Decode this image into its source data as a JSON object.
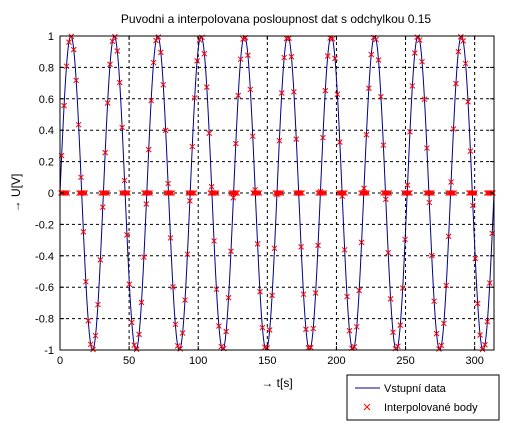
{
  "chart_data": {
    "type": "line",
    "title": "Puvodni a interpolovana posloupnost dat s odchylkou 0.15",
    "xlabel": "→ t[s]",
    "ylabel": "→ U[V]",
    "xlim": [
      0,
      314
    ],
    "ylim": [
      -1,
      1
    ],
    "xticks": [
      0,
      50,
      100,
      150,
      200,
      250,
      300
    ],
    "yticks": [
      -1,
      -0.8,
      -0.6,
      -0.4,
      -0.2,
      0,
      0.2,
      0.4,
      0.6,
      0.8,
      1
    ],
    "xtick_labels": [
      "0",
      "50",
      "100",
      "150",
      "200",
      "250",
      "300"
    ],
    "ytick_labels": [
      "-1",
      "-0.8",
      "-0.6",
      "-0.4",
      "-0.2",
      "0",
      "0.2",
      "0.4",
      "0.6",
      "0.8",
      "1"
    ],
    "grid": true,
    "legend_position": "bottom-right",
    "series": [
      {
        "name": "Vstupní data",
        "style": "line",
        "color": "#00008b",
        "function": "sin(0.2*t)",
        "period": 31.4,
        "amplitude": 1
      },
      {
        "name": "Interpolované body",
        "style": "x-marker",
        "color": "#ff0000",
        "description_of_pattern": "points on the sine curve plus clusters of points at U = 0 near each rising zero crossing"
      }
    ],
    "zero_clusters_t": [
      3,
      16,
      32,
      47,
      63,
      79,
      95,
      111,
      126,
      142,
      158,
      173,
      189,
      204,
      220,
      236,
      251,
      267,
      283,
      298,
      311
    ]
  }
}
